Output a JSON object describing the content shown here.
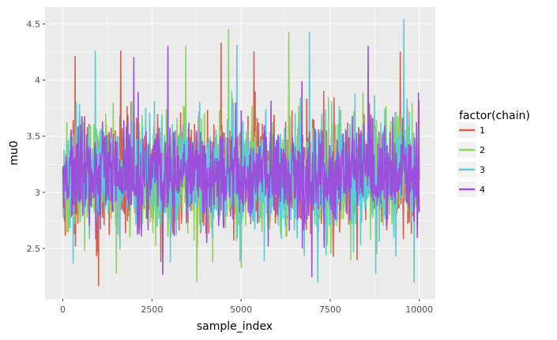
{
  "chart_data": {
    "type": "line",
    "xlabel": "sample_index",
    "ylabel": "mu0",
    "xlim": [
      -500,
      10450
    ],
    "ylim": [
      2.05,
      4.65
    ],
    "x_ticks": [
      0,
      2500,
      5000,
      7500,
      10000
    ],
    "x_tick_labels": [
      "0",
      "2500",
      "5000",
      "7500",
      "10000"
    ],
    "y_ticks": [
      2.5,
      3,
      3.5,
      4,
      4.5
    ],
    "y_tick_labels": [
      "2.5",
      "3",
      "3.5",
      "4",
      "4.5"
    ],
    "grid": true,
    "legend": {
      "title": "factor(chain)",
      "placement": "right"
    },
    "series": [
      {
        "name": "1",
        "color": "#d8604b",
        "center": 3.15,
        "spread": 0.25,
        "min": 2.17,
        "max": 4.33,
        "extremes": [
          {
            "x": 350,
            "y": 4.21
          },
          {
            "x": 1000,
            "y": 2.17
          },
          {
            "x": 1620,
            "y": 4.26
          },
          {
            "x": 4440,
            "y": 4.33
          },
          {
            "x": 5360,
            "y": 4.25
          },
          {
            "x": 8250,
            "y": 2.4
          },
          {
            "x": 9470,
            "y": 4.25
          }
        ]
      },
      {
        "name": "2",
        "color": "#8cd55b",
        "center": 3.15,
        "spread": 0.25,
        "min": 2.2,
        "max": 4.45,
        "extremes": [
          {
            "x": 1500,
            "y": 2.28
          },
          {
            "x": 3450,
            "y": 4.3
          },
          {
            "x": 3760,
            "y": 2.2
          },
          {
            "x": 4650,
            "y": 4.45
          },
          {
            "x": 5000,
            "y": 2.33
          },
          {
            "x": 6340,
            "y": 4.42
          },
          {
            "x": 8080,
            "y": 2.4
          }
        ]
      },
      {
        "name": "3",
        "color": "#5bccd6",
        "center": 3.15,
        "spread": 0.25,
        "min": 2.2,
        "max": 4.54,
        "extremes": [
          {
            "x": 4880,
            "y": 4.31
          },
          {
            "x": 6920,
            "y": 4.43
          },
          {
            "x": 9570,
            "y": 4.54
          },
          {
            "x": 9860,
            "y": 2.2
          },
          {
            "x": 3020,
            "y": 2.38
          }
        ]
      },
      {
        "name": "4",
        "color": "#9b50dc",
        "center": 3.15,
        "spread": 0.22,
        "min": 2.25,
        "max": 4.3,
        "extremes": [
          {
            "x": 1990,
            "y": 4.2
          },
          {
            "x": 2800,
            "y": 2.27
          },
          {
            "x": 2950,
            "y": 4.3
          },
          {
            "x": 6990,
            "y": 2.25
          },
          {
            "x": 8560,
            "y": 4.3
          }
        ]
      }
    ]
  }
}
